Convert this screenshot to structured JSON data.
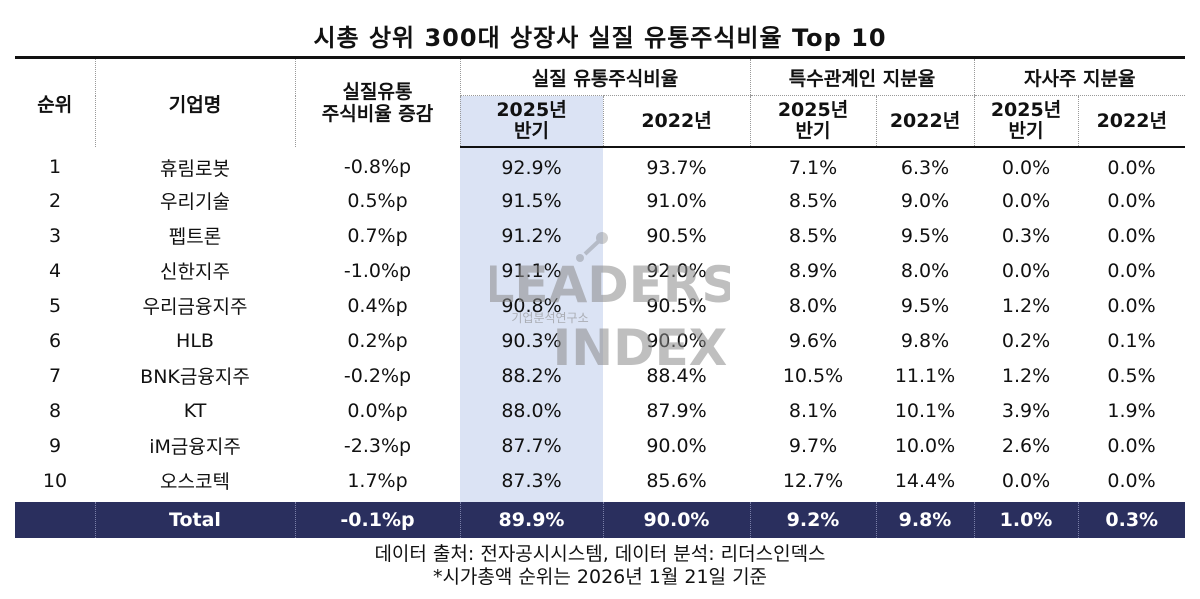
{
  "chart_data": {
    "type": "table",
    "title": "시총 상위 300대 상장사 실질 유통주식비율 Top 10",
    "headers": {
      "rank": "순위",
      "company": "기업명",
      "change": "실질유통\n주식비율 증감",
      "group_float": "실질 유통주식비율",
      "group_related": "특수관계인 지분율",
      "group_treasury": "자사주 지분율",
      "y2025": "2025년\n반기",
      "y2022": "2022년"
    },
    "rows": [
      {
        "rank": "1",
        "company": "휴림로봇",
        "change": "-0.8%p",
        "float_2025": "92.9%",
        "float_2022": "93.7%",
        "related_2025": "7.1%",
        "related_2022": "6.3%",
        "treasury_2025": "0.0%",
        "treasury_2022": "0.0%"
      },
      {
        "rank": "2",
        "company": "우리기술",
        "change": "0.5%p",
        "float_2025": "91.5%",
        "float_2022": "91.0%",
        "related_2025": "8.5%",
        "related_2022": "9.0%",
        "treasury_2025": "0.0%",
        "treasury_2022": "0.0%"
      },
      {
        "rank": "3",
        "company": "펩트론",
        "change": "0.7%p",
        "float_2025": "91.2%",
        "float_2022": "90.5%",
        "related_2025": "8.5%",
        "related_2022": "9.5%",
        "treasury_2025": "0.3%",
        "treasury_2022": "0.0%"
      },
      {
        "rank": "4",
        "company": "신한지주",
        "change": "-1.0%p",
        "float_2025": "91.1%",
        "float_2022": "92.0%",
        "related_2025": "8.9%",
        "related_2022": "8.0%",
        "treasury_2025": "0.0%",
        "treasury_2022": "0.0%"
      },
      {
        "rank": "5",
        "company": "우리금융지주",
        "change": "0.4%p",
        "float_2025": "90.8%",
        "float_2022": "90.5%",
        "related_2025": "8.0%",
        "related_2022": "9.5%",
        "treasury_2025": "1.2%",
        "treasury_2022": "0.0%"
      },
      {
        "rank": "6",
        "company": "HLB",
        "change": "0.2%p",
        "float_2025": "90.3%",
        "float_2022": "90.0%",
        "related_2025": "9.6%",
        "related_2022": "9.8%",
        "treasury_2025": "0.2%",
        "treasury_2022": "0.1%"
      },
      {
        "rank": "7",
        "company": "BNK금융지주",
        "change": "-0.2%p",
        "float_2025": "88.2%",
        "float_2022": "88.4%",
        "related_2025": "10.5%",
        "related_2022": "11.1%",
        "treasury_2025": "1.2%",
        "treasury_2022": "0.5%"
      },
      {
        "rank": "8",
        "company": "KT",
        "change": "0.0%p",
        "float_2025": "88.0%",
        "float_2022": "87.9%",
        "related_2025": "8.1%",
        "related_2022": "10.1%",
        "treasury_2025": "3.9%",
        "treasury_2022": "1.9%"
      },
      {
        "rank": "9",
        "company": "iM금융지주",
        "change": "-2.3%p",
        "float_2025": "87.7%",
        "float_2022": "90.0%",
        "related_2025": "9.7%",
        "related_2022": "10.0%",
        "treasury_2025": "2.6%",
        "treasury_2022": "0.0%"
      },
      {
        "rank": "10",
        "company": "오스코텍",
        "change": "1.7%p",
        "float_2025": "87.3%",
        "float_2022": "85.6%",
        "related_2025": "12.7%",
        "related_2022": "14.4%",
        "treasury_2025": "0.0%",
        "treasury_2022": "0.0%"
      }
    ],
    "total": {
      "label": "Total",
      "change": "-0.1%p",
      "float_2025": "89.9%",
      "float_2022": "90.0%",
      "related_2025": "9.2%",
      "related_2022": "9.8%",
      "treasury_2025": "1.0%",
      "treasury_2022": "0.3%"
    }
  },
  "watermark": {
    "word_top": "LEADERS",
    "word_bottom": "INDEX",
    "subtitle": "기업분석연구소"
  },
  "footer": {
    "source": "데이터 출처: 전자공시시스템, 데이터 분석: 리더스인덱스",
    "note": "*시가총액 순위는 2026년 1월 21일 기준"
  },
  "colors": {
    "highlight": "#dbe3f4",
    "total_row": "#2a2f5e"
  }
}
